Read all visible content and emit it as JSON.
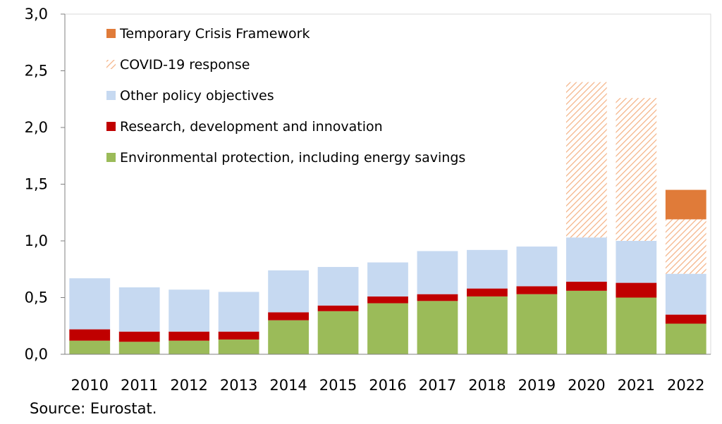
{
  "chart_data": {
    "type": "bar",
    "stacked": true,
    "categories": [
      "2010",
      "2011",
      "2012",
      "2013",
      "2014",
      "2015",
      "2016",
      "2017",
      "2018",
      "2019",
      "2020",
      "2021",
      "2022"
    ],
    "ylim": [
      0,
      3.0
    ],
    "yticks": [
      "0,0",
      "0,5",
      "1,0",
      "1,5",
      "2,0",
      "2,5",
      "3,0"
    ],
    "ytick_values": [
      0,
      0.5,
      1.0,
      1.5,
      2.0,
      2.5,
      3.0
    ],
    "grid": false,
    "legend_position": "top-left",
    "series": [
      {
        "name": "Environmental protection, including energy savings",
        "color": "#9BBB59",
        "pattern": "solid",
        "values": [
          0.12,
          0.11,
          0.12,
          0.13,
          0.3,
          0.38,
          0.45,
          0.47,
          0.51,
          0.53,
          0.56,
          0.5,
          0.27
        ]
      },
      {
        "name": "Research, development and innovation",
        "color": "#C00000",
        "pattern": "solid",
        "values": [
          0.1,
          0.09,
          0.08,
          0.07,
          0.07,
          0.05,
          0.06,
          0.06,
          0.07,
          0.07,
          0.08,
          0.13,
          0.08
        ]
      },
      {
        "name": "Other policy objectives",
        "color": "#C6D9F1",
        "pattern": "solid",
        "values": [
          0.45,
          0.39,
          0.37,
          0.35,
          0.37,
          0.34,
          0.3,
          0.38,
          0.34,
          0.35,
          0.39,
          0.37,
          0.36
        ]
      },
      {
        "name": "COVID-19 response",
        "color": "#F4B183",
        "pattern": "hatched",
        "values": [
          0,
          0,
          0,
          0,
          0,
          0,
          0,
          0,
          0,
          0,
          1.37,
          1.26,
          0.48
        ]
      },
      {
        "name": "Temporary Crisis Framework",
        "color": "#E07B39",
        "pattern": "solid",
        "values": [
          0,
          0,
          0,
          0,
          0,
          0,
          0,
          0,
          0,
          0,
          0,
          0,
          0.26
        ]
      }
    ],
    "legend_order": [
      "Temporary Crisis Framework",
      "COVID-19 response",
      "Other policy objectives",
      "Research, development and innovation",
      "Environmental protection, including energy savings"
    ]
  },
  "source_note": "Source: Eurostat."
}
